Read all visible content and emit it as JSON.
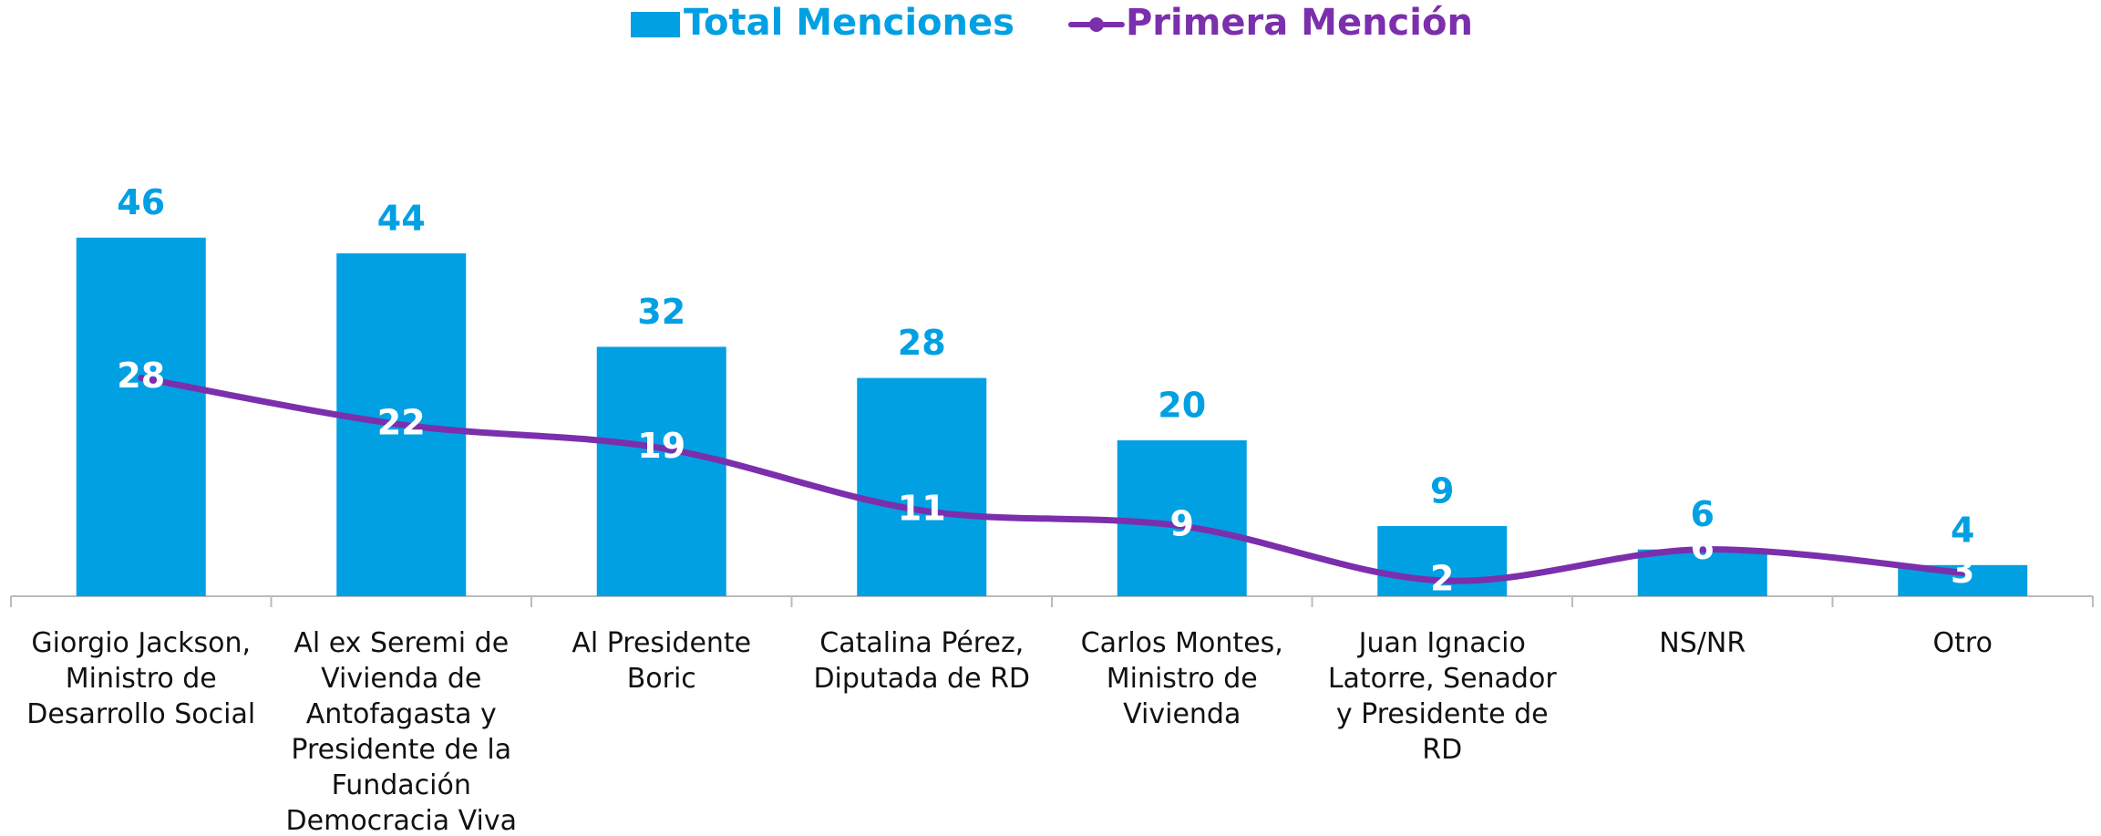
{
  "chart_data": {
    "type": "bar",
    "categories": [
      "Giorgio Jackson, Ministro de Desarrollo Social",
      "Al ex Seremi de Vivienda de Antofagasta y Presidente de la Fundación Democracia Viva",
      "Al Presidente Boric",
      "Catalina Pérez, Diputada de RD",
      "Carlos Montes, Ministro de Vivienda",
      "Juan Ignacio Latorre, Senador y Presidente de RD",
      "NS/NR",
      "Otro"
    ],
    "series": [
      {
        "name": "Total Menciones",
        "type": "bar",
        "color": "#00a0e3",
        "values": [
          46,
          44,
          32,
          28,
          20,
          9,
          6,
          4
        ]
      },
      {
        "name": "Primera Mención",
        "type": "line",
        "color": "#7b2fac",
        "values": [
          28,
          22,
          19,
          11,
          9,
          2,
          6,
          3
        ]
      }
    ],
    "legend": "top"
  }
}
